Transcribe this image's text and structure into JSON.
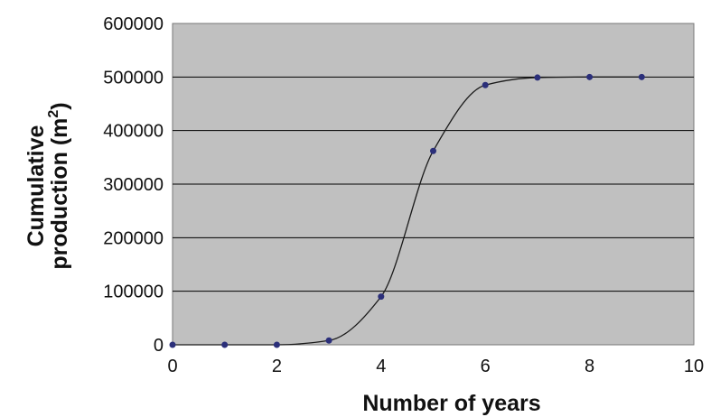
{
  "chart_data": {
    "type": "line",
    "title": "",
    "xlabel": "Number of years",
    "ylabel_line1": "Cumulative",
    "ylabel_line2": "production (m",
    "ylabel_sup": "2",
    "ylabel_close": ")",
    "xlim": [
      0,
      10
    ],
    "ylim": [
      0,
      600000
    ],
    "x_ticks": [
      0,
      2,
      4,
      6,
      8,
      10
    ],
    "y_ticks": [
      0,
      100000,
      200000,
      300000,
      400000,
      500000,
      600000
    ],
    "x_tick_labels": [
      "0",
      "2",
      "4",
      "6",
      "8",
      "10"
    ],
    "y_tick_labels": [
      "0",
      "100000",
      "200000",
      "300000",
      "400000",
      "500000",
      "600000"
    ],
    "grid": "horizontal",
    "legend": "none",
    "plot_background": "#c0c0c0",
    "series": [
      {
        "marker_color": "#2b2f7a",
        "line_color": "#1a1a1a",
        "x": [
          0,
          1,
          2,
          3,
          4,
          5,
          6,
          7,
          8,
          9
        ],
        "y": [
          0,
          0,
          0,
          8000,
          90000,
          362000,
          485000,
          499000,
          500000,
          500000
        ]
      }
    ]
  }
}
